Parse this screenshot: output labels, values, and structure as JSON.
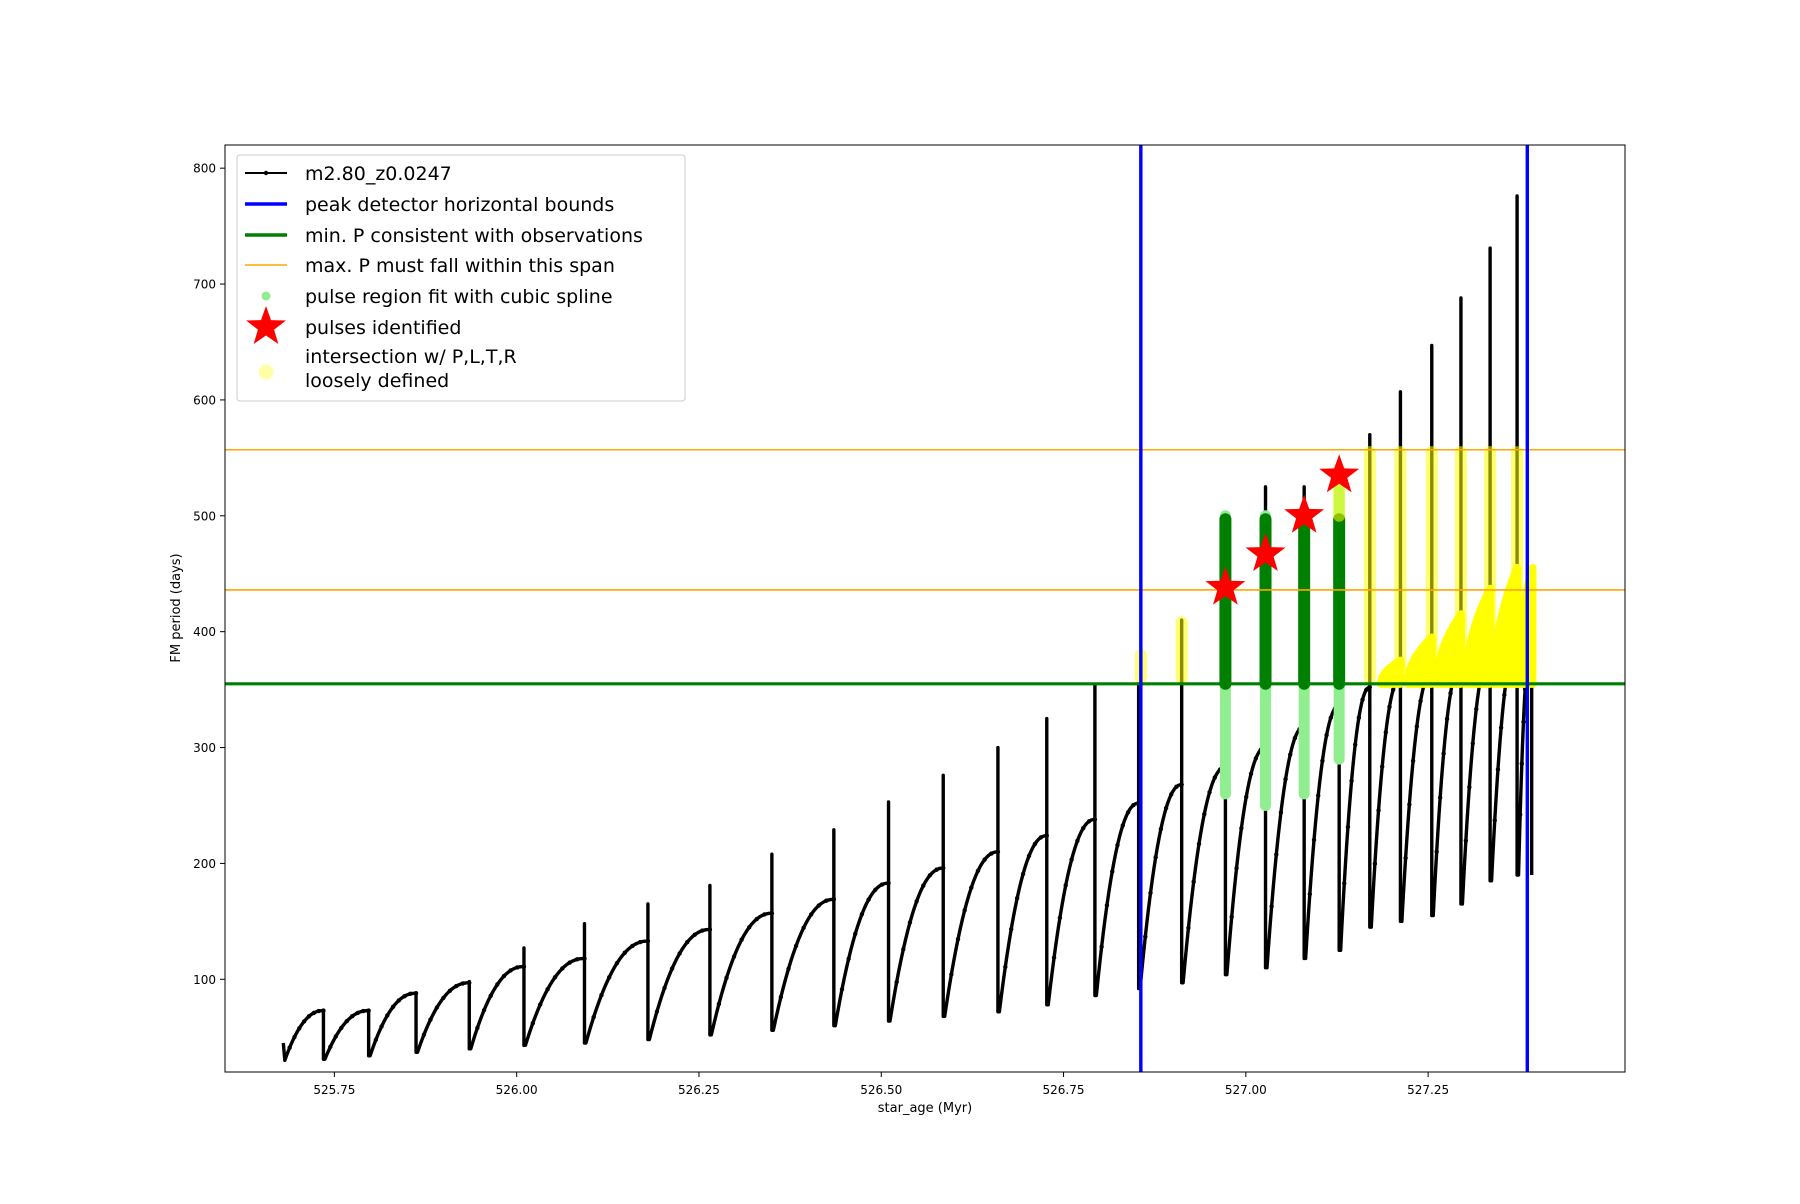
{
  "chart_data": {
    "type": "line",
    "title": "",
    "xlabel": "star_age (Myr)",
    "ylabel": "FM period (days)",
    "xlim": [
      525.6,
      527.52
    ],
    "ylim": [
      20,
      820
    ],
    "x_ticks": [
      {
        "value": 525.75,
        "label": "525.75"
      },
      {
        "value": 526.0,
        "label": "526.00"
      },
      {
        "value": 526.25,
        "label": "526.25"
      },
      {
        "value": 526.5,
        "label": "526.50"
      },
      {
        "value": 526.75,
        "label": "526.75"
      },
      {
        "value": 527.0,
        "label": "527.00"
      },
      {
        "value": 527.25,
        "label": "527.25"
      }
    ],
    "y_ticks": [
      {
        "value": 100,
        "label": "100"
      },
      {
        "value": 200,
        "label": "200"
      },
      {
        "value": 300,
        "label": "300"
      },
      {
        "value": 400,
        "label": "400"
      },
      {
        "value": 500,
        "label": "500"
      },
      {
        "value": 600,
        "label": "600"
      },
      {
        "value": 700,
        "label": "700"
      },
      {
        "value": 800,
        "label": "800"
      }
    ],
    "grid": false,
    "legend_position": "top-left",
    "legend": [
      {
        "key": "track",
        "label": "m2.80_z0.0247",
        "color": "#000000"
      },
      {
        "key": "vbounds",
        "label": "peak detector horizontal bounds",
        "color": "#0000ff"
      },
      {
        "key": "minp",
        "label": "min. P consistent with observations",
        "color": "#008000"
      },
      {
        "key": "maxp",
        "label": "max. P must fall within this span",
        "color": "#ffa500"
      },
      {
        "key": "spline",
        "label": "pulse region fit with cubic spline",
        "color": "#90ee90"
      },
      {
        "key": "pulses",
        "label": "pulses identified",
        "color": "#ff0000"
      },
      {
        "key": "intersection",
        "label": "intersection w/ P,L,T,R\nloosely defined",
        "color": "#ffff00"
      }
    ],
    "track": {
      "name": "m2.80_z0.0247",
      "color": "#000000",
      "x_start": 525.68,
      "start_value": 45,
      "cycles": [
        {
          "t_end": 525.735,
          "y_min": 30,
          "y_max": 73,
          "y_spike": 73
        },
        {
          "t_end": 525.797,
          "y_min": 31,
          "y_max": 73,
          "y_spike": 73
        },
        {
          "t_end": 525.862,
          "y_min": 34,
          "y_max": 88,
          "y_spike": 88
        },
        {
          "t_end": 525.935,
          "y_min": 37,
          "y_max": 97,
          "y_spike": 98
        },
        {
          "t_end": 526.01,
          "y_min": 40,
          "y_max": 111,
          "y_spike": 127
        },
        {
          "t_end": 526.093,
          "y_min": 43,
          "y_max": 118,
          "y_spike": 148
        },
        {
          "t_end": 526.18,
          "y_min": 45,
          "y_max": 133,
          "y_spike": 165
        },
        {
          "t_end": 526.265,
          "y_min": 48,
          "y_max": 143,
          "y_spike": 181
        },
        {
          "t_end": 526.35,
          "y_min": 52,
          "y_max": 157,
          "y_spike": 208
        },
        {
          "t_end": 526.435,
          "y_min": 56,
          "y_max": 169,
          "y_spike": 229
        },
        {
          "t_end": 526.51,
          "y_min": 60,
          "y_max": 183,
          "y_spike": 253
        },
        {
          "t_end": 526.585,
          "y_min": 64,
          "y_max": 196,
          "y_spike": 276
        },
        {
          "t_end": 526.66,
          "y_min": 68,
          "y_max": 210,
          "y_spike": 300
        },
        {
          "t_end": 526.727,
          "y_min": 72,
          "y_max": 224,
          "y_spike": 325
        },
        {
          "t_end": 526.793,
          "y_min": 78,
          "y_max": 238,
          "y_spike": 354
        },
        {
          "t_end": 526.853,
          "y_min": 86,
          "y_max": 252,
          "y_spike": 355
        },
        {
          "t_end": 526.912,
          "y_min": 92,
          "y_max": 268,
          "y_spike": 410
        },
        {
          "t_end": 526.972,
          "y_min": 97,
          "y_max": 283,
          "y_spike": 500
        },
        {
          "t_end": 527.027,
          "y_min": 104,
          "y_max": 300,
          "y_spike": 525
        },
        {
          "t_end": 527.08,
          "y_min": 110,
          "y_max": 318,
          "y_spike": 525
        },
        {
          "t_end": 527.128,
          "y_min": 118,
          "y_max": 336,
          "y_spike": 545
        },
        {
          "t_end": 527.17,
          "y_min": 125,
          "y_max": 352,
          "y_spike": 570
        },
        {
          "t_end": 527.212,
          "y_min": 145,
          "y_max": 360,
          "y_spike": 607
        },
        {
          "t_end": 527.255,
          "y_min": 150,
          "y_max": 365,
          "y_spike": 647
        },
        {
          "t_end": 527.295,
          "y_min": 155,
          "y_max": 372,
          "y_spike": 688
        },
        {
          "t_end": 527.335,
          "y_min": 165,
          "y_max": 380,
          "y_spike": 731
        },
        {
          "t_end": 527.372,
          "y_min": 185,
          "y_max": 390,
          "y_spike": 776
        },
        {
          "t_end": 527.392,
          "y_min": 190,
          "y_max": 395,
          "y_spike": 395
        }
      ]
    },
    "vertical_bounds": {
      "color": "#0000ff",
      "x": [
        526.856,
        527.386
      ]
    },
    "min_period_line": {
      "color": "#008000",
      "y": 355
    },
    "max_period_span": {
      "color": "#ffa500",
      "y": [
        436,
        557
      ]
    },
    "spline_regions": {
      "color": "#90ee90",
      "segments": [
        {
          "x": 526.972,
          "y_from": 260,
          "y_to": 500
        },
        {
          "x": 527.027,
          "y_from": 250,
          "y_to": 500
        },
        {
          "x": 527.08,
          "y_from": 260,
          "y_to": 500
        },
        {
          "x": 527.128,
          "y_from": 290,
          "y_to": 530
        }
      ]
    },
    "pulses_identified": {
      "color": "#ff0000",
      "x": [
        526.972,
        527.027,
        527.08,
        527.128
      ],
      "y": [
        438,
        467,
        500,
        535
      ]
    },
    "intersection_regions": {
      "color": "#ffff00",
      "spikes": [
        {
          "x": 526.856,
          "y_from": 360,
          "y_to": 380
        },
        {
          "x": 526.912,
          "y_from": 360,
          "y_to": 408
        },
        {
          "x": 527.128,
          "y_from": 500,
          "y_to": 540
        },
        {
          "x": 527.17,
          "y_from": 360,
          "y_to": 555
        },
        {
          "x": 527.212,
          "y_from": 360,
          "y_to": 555
        },
        {
          "x": 527.255,
          "y_from": 360,
          "y_to": 555
        },
        {
          "x": 527.295,
          "y_from": 360,
          "y_to": 555
        },
        {
          "x": 527.335,
          "y_from": 360,
          "y_to": 555
        },
        {
          "x": 527.372,
          "y_from": 360,
          "y_to": 555
        }
      ],
      "bands": [
        {
          "x_from": 527.185,
          "x_to": 527.212,
          "y_max": 375
        },
        {
          "x_from": 527.222,
          "x_to": 527.255,
          "y_max": 395
        },
        {
          "x_from": 527.262,
          "x_to": 527.295,
          "y_max": 415
        },
        {
          "x_from": 527.302,
          "x_to": 527.335,
          "y_max": 437
        },
        {
          "x_from": 527.34,
          "x_to": 527.372,
          "y_max": 455
        },
        {
          "x_from": 527.372,
          "x_to": 527.393,
          "y_max": 455
        }
      ]
    },
    "model_phases": {
      "min_blue_loop": {
        "x": 526.972,
        "y": 438
      }
    }
  }
}
